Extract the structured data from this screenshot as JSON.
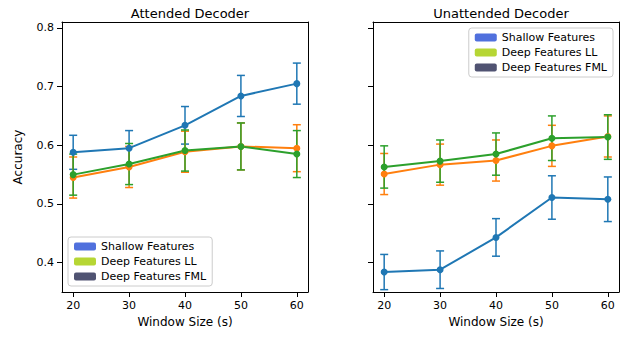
{
  "chart_data": [
    {
      "type": "line",
      "title": "Attended Decoder",
      "xlabel": "Window Size (s)",
      "ylabel": "Accuracy",
      "x": [
        20,
        30,
        40,
        50,
        60
      ],
      "series": [
        {
          "name": "Shallow Features",
          "color": "#1f77b4",
          "marker": "circle",
          "values": [
            0.588,
            0.595,
            0.634,
            0.684,
            0.705
          ],
          "errors": [
            0.029,
            0.03,
            0.032,
            0.035,
            0.035
          ]
        },
        {
          "name": "Deep Features LL",
          "color": "#ff7f0e",
          "marker": "circle",
          "values": [
            0.545,
            0.563,
            0.589,
            0.598,
            0.595
          ],
          "errors": [
            0.035,
            0.035,
            0.035,
            0.04,
            0.04
          ]
        },
        {
          "name": "Deep Features FML",
          "color": "#2ca02c",
          "marker": "circle",
          "values": [
            0.55,
            0.568,
            0.591,
            0.598,
            0.585
          ],
          "errors": [
            0.035,
            0.035,
            0.035,
            0.04,
            0.04
          ]
        }
      ],
      "xlim": [
        18,
        62
      ],
      "ylim": [
        0.35,
        0.81
      ],
      "xticks": [
        20,
        30,
        40,
        50,
        60
      ],
      "yticks": [
        0.4,
        0.5,
        0.6,
        0.7,
        0.8
      ],
      "legend": "lower left",
      "grid": false
    },
    {
      "type": "line",
      "title": "Unattended Decoder",
      "xlabel": "Window Size (s)",
      "x": [
        20,
        30,
        40,
        50,
        60
      ],
      "series": [
        {
          "name": "Shallow Features",
          "color": "#1f77b4",
          "marker": "circle",
          "values": [
            0.384,
            0.388,
            0.443,
            0.511,
            0.508
          ],
          "errors": [
            0.03,
            0.032,
            0.032,
            0.037,
            0.038
          ]
        },
        {
          "name": "Deep Features LL",
          "color": "#ff7f0e",
          "marker": "circle",
          "values": [
            0.551,
            0.567,
            0.574,
            0.599,
            0.615
          ],
          "errors": [
            0.035,
            0.035,
            0.035,
            0.035,
            0.035
          ]
        },
        {
          "name": "Deep Features FML",
          "color": "#2ca02c",
          "marker": "circle",
          "values": [
            0.563,
            0.573,
            0.585,
            0.612,
            0.614
          ],
          "errors": [
            0.036,
            0.036,
            0.036,
            0.038,
            0.038
          ]
        }
      ],
      "xlim": [
        18,
        62
      ],
      "ylim": [
        0.35,
        0.81
      ],
      "xticks": [
        20,
        30,
        40,
        50,
        60
      ],
      "yticks": [
        0.4,
        0.5,
        0.6,
        0.7,
        0.8
      ],
      "legend": "upper right",
      "grid": false,
      "tick_labels": "x"
    }
  ]
}
